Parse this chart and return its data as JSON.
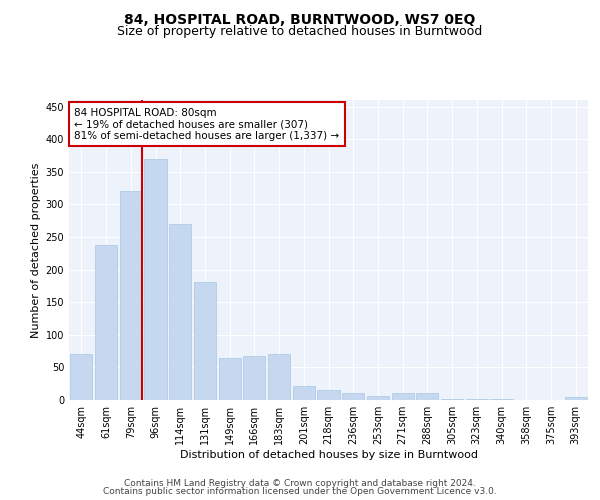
{
  "title": "84, HOSPITAL ROAD, BURNTWOOD, WS7 0EQ",
  "subtitle": "Size of property relative to detached houses in Burntwood",
  "xlabel": "Distribution of detached houses by size in Burntwood",
  "ylabel": "Number of detached properties",
  "categories": [
    "44sqm",
    "61sqm",
    "79sqm",
    "96sqm",
    "114sqm",
    "131sqm",
    "149sqm",
    "166sqm",
    "183sqm",
    "201sqm",
    "218sqm",
    "236sqm",
    "253sqm",
    "271sqm",
    "288sqm",
    "305sqm",
    "323sqm",
    "340sqm",
    "358sqm",
    "375sqm",
    "393sqm"
  ],
  "values": [
    70,
    237,
    320,
    370,
    270,
    181,
    65,
    68,
    70,
    21,
    16,
    11,
    6,
    10,
    11,
    2,
    1,
    1,
    0,
    0,
    4
  ],
  "bar_color": "#c5d8f0",
  "bar_edge_color": "#a8c8e8",
  "vline_color": "#cc0000",
  "vline_index": 2,
  "annotation_line1": "84 HOSPITAL ROAD: 80sqm",
  "annotation_line2": "← 19% of detached houses are smaller (307)",
  "annotation_line3": "81% of semi-detached houses are larger (1,337) →",
  "annotation_box_color": "#ffffff",
  "annotation_box_edge_color": "#cc0000",
  "ylim": [
    0,
    460
  ],
  "yticks": [
    0,
    50,
    100,
    150,
    200,
    250,
    300,
    350,
    400,
    450
  ],
  "footer_line1": "Contains HM Land Registry data © Crown copyright and database right 2024.",
  "footer_line2": "Contains public sector information licensed under the Open Government Licence v3.0.",
  "background_color": "#eef2fb",
  "grid_color": "#ffffff",
  "title_fontsize": 10,
  "subtitle_fontsize": 9,
  "axis_label_fontsize": 8,
  "tick_fontsize": 7,
  "annotation_fontsize": 7.5,
  "footer_fontsize": 6.5
}
